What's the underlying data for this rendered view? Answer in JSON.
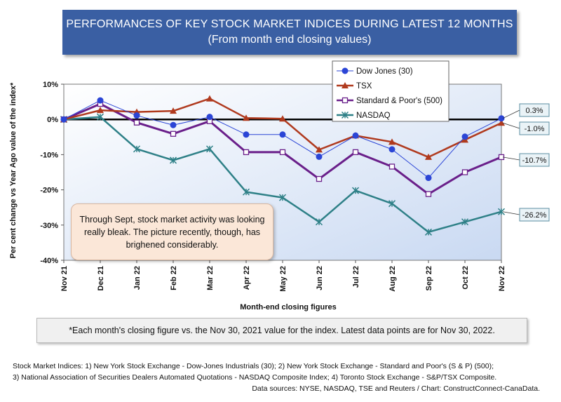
{
  "title": {
    "line1": "PERFORMANCES OF KEY STOCK MARKET INDICES DURING LATEST 12 MONTHS",
    "line2": "(From month end closing values)"
  },
  "annotation": "Through Sept, stock market activity was looking really bleak. The picture recently, though, has brighened considerably.",
  "footnote": "*Each month's closing figure vs. the Nov 30, 2021 value for the index. Latest data points are for Nov 30, 2022.",
  "sources": {
    "line1": "Stock Market Indices: 1) New York Stock Exchange - Dow-Jones Industrials (30); 2) New York Stock Exchange - Standard and Poor's (S & P) (500);",
    "line2": "3) National Association of Securities Dealers Automated Quotations - NASDAQ Composite Index; 4) Toronto Stock Exchange - S&P/TSX Composite.",
    "line3": "Data sources: NYSE, NASDAQ, TSE and Reuters / Chart: ConstructConnect-CanaData."
  },
  "chart_data": {
    "type": "line",
    "xlabel": "Month-end closing figures",
    "ylabel": "Per cent change vs Year Ago value of the index*",
    "ylim": [
      -40,
      10
    ],
    "yticks": [
      10,
      0,
      -10,
      -20,
      -30,
      -40
    ],
    "ytick_labels": [
      "10%",
      "0%",
      "-10%",
      "-20%",
      "-30%",
      "-40%"
    ],
    "categories": [
      "Nov 21",
      "Dec 21",
      "Jan 22",
      "Feb 22",
      "Mar 22",
      "Apr 22",
      "May 22",
      "Jun 22",
      "Jul 22",
      "Aug 22",
      "Sep 22",
      "Oct 22",
      "Nov 22"
    ],
    "legend_position": "top-right",
    "series": [
      {
        "name": "Dow Jones (30)",
        "color": "#2b45d6",
        "marker": "circle",
        "stroke_width": 1,
        "values": [
          0,
          5.4,
          1.1,
          -1.6,
          0.7,
          -4.3,
          -4.3,
          -10.6,
          -4.6,
          -8.5,
          -16.6,
          -4.9,
          0.3
        ]
      },
      {
        "name": "TSX",
        "color": "#b03a1e",
        "marker": "triangle",
        "stroke_width": 2.5,
        "values": [
          0,
          2.6,
          2.1,
          2.4,
          5.9,
          0.4,
          0.2,
          -8.6,
          -4.6,
          -6.4,
          -10.7,
          -5.8,
          -1.0
        ]
      },
      {
        "name": "Standard & Poor's (500)",
        "color": "#6a1f8a",
        "marker": "square",
        "stroke_width": 3,
        "values": [
          0,
          4.4,
          -0.9,
          -4.1,
          -0.5,
          -9.3,
          -9.3,
          -16.9,
          -9.3,
          -13.4,
          -21.2,
          -15.0,
          -10.7
        ]
      },
      {
        "name": "NASDAQ",
        "color": "#2e8087",
        "marker": "asterisk",
        "stroke_width": 2.5,
        "values": [
          0,
          0.7,
          -8.4,
          -11.6,
          -8.4,
          -20.6,
          -22.2,
          -29.1,
          -20.2,
          -23.9,
          -32.0,
          -29.1,
          -26.2
        ]
      }
    ],
    "end_labels": [
      "0.3%",
      "-1.0%",
      "-10.7%",
      "-26.2%"
    ]
  }
}
